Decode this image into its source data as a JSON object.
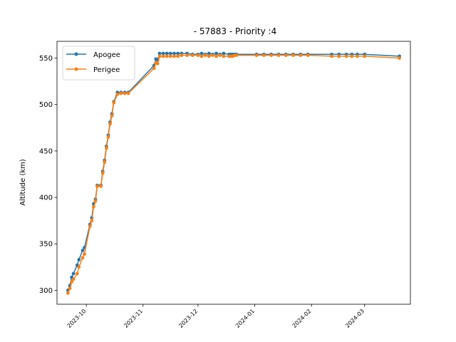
{
  "chart_data": {
    "type": "line",
    "title": " - 57883 - Priority :4",
    "xlabel": "",
    "ylabel": "Altitude (km)",
    "xlim": [
      "2023-09-15",
      "2024-03-26"
    ],
    "ylim": [
      285,
      568
    ],
    "x_ticks": [
      "2023-10",
      "2023-11",
      "2023-12",
      "2024-01",
      "2024-02",
      "2024-03"
    ],
    "y_ticks": [
      300,
      350,
      400,
      450,
      500,
      550
    ],
    "grid": false,
    "legend_position": "top-left",
    "colors": {
      "apogee": "#1f77b4",
      "perigee": "#ff7f0e"
    },
    "series": [
      {
        "name": "Apogee",
        "points": [
          [
            "2023-09-21",
            300
          ],
          [
            "2023-09-22",
            305
          ],
          [
            "2023-09-23",
            314
          ],
          [
            "2023-09-24",
            318
          ],
          [
            "2023-09-26",
            327
          ],
          [
            "2023-09-27",
            333
          ],
          [
            "2023-09-29",
            343
          ],
          [
            "2023-09-30",
            346
          ],
          [
            "2023-10-03",
            371
          ],
          [
            "2023-10-04",
            378
          ],
          [
            "2023-10-05",
            393
          ],
          [
            "2023-10-06",
            398
          ],
          [
            "2023-10-07",
            413
          ],
          [
            "2023-10-09",
            413
          ],
          [
            "2023-10-10",
            428
          ],
          [
            "2023-10-11",
            440
          ],
          [
            "2023-10-12",
            455
          ],
          [
            "2023-10-13",
            467
          ],
          [
            "2023-10-14",
            481
          ],
          [
            "2023-10-15",
            490
          ],
          [
            "2023-10-16",
            503
          ],
          [
            "2023-10-18",
            513
          ],
          [
            "2023-10-20",
            513
          ],
          [
            "2023-10-22",
            513
          ],
          [
            "2023-10-24",
            513
          ],
          [
            "2023-11-07",
            542
          ],
          [
            "2023-11-08",
            549
          ],
          [
            "2023-11-09",
            548
          ],
          [
            "2023-11-10",
            555
          ],
          [
            "2023-11-12",
            555
          ],
          [
            "2023-11-14",
            555
          ],
          [
            "2023-11-16",
            555
          ],
          [
            "2023-11-18",
            555
          ],
          [
            "2023-11-20",
            555
          ],
          [
            "2023-11-22",
            555
          ],
          [
            "2023-11-25",
            555
          ],
          [
            "2023-11-28",
            554
          ],
          [
            "2023-12-01",
            554
          ],
          [
            "2023-12-03",
            555
          ],
          [
            "2023-12-05",
            554
          ],
          [
            "2023-12-07",
            555
          ],
          [
            "2023-12-09",
            554
          ],
          [
            "2023-12-11",
            555
          ],
          [
            "2023-12-13",
            554
          ],
          [
            "2023-12-15",
            555
          ],
          [
            "2023-12-18",
            554
          ],
          [
            "2023-12-19",
            554
          ],
          [
            "2023-12-20",
            554
          ],
          [
            "2023-12-21",
            554
          ],
          [
            "2023-12-22",
            554
          ],
          [
            "2024-01-02",
            554
          ],
          [
            "2024-01-06",
            554
          ],
          [
            "2024-01-10",
            554
          ],
          [
            "2024-01-14",
            554
          ],
          [
            "2024-01-18",
            554
          ],
          [
            "2024-01-22",
            554
          ],
          [
            "2024-01-26",
            554
          ],
          [
            "2024-01-30",
            554
          ],
          [
            "2024-02-12",
            554
          ],
          [
            "2024-02-16",
            554
          ],
          [
            "2024-02-20",
            554
          ],
          [
            "2024-02-23",
            554
          ],
          [
            "2024-02-26",
            554
          ],
          [
            "2024-03-01",
            554
          ],
          [
            "2024-03-20",
            552
          ]
        ]
      },
      {
        "name": "Perigee",
        "points": [
          [
            "2023-09-21",
            297
          ],
          [
            "2023-09-22",
            302
          ],
          [
            "2023-09-23",
            309
          ],
          [
            "2023-09-24",
            312
          ],
          [
            "2023-09-26",
            318
          ],
          [
            "2023-09-27",
            325
          ],
          [
            "2023-09-29",
            335
          ],
          [
            "2023-09-30",
            339
          ],
          [
            "2023-10-03",
            369
          ],
          [
            "2023-10-04",
            375
          ],
          [
            "2023-10-05",
            390
          ],
          [
            "2023-10-06",
            396
          ],
          [
            "2023-10-07",
            412
          ],
          [
            "2023-10-09",
            412
          ],
          [
            "2023-10-10",
            426
          ],
          [
            "2023-10-11",
            438
          ],
          [
            "2023-10-12",
            453
          ],
          [
            "2023-10-13",
            465
          ],
          [
            "2023-10-14",
            479
          ],
          [
            "2023-10-15",
            488
          ],
          [
            "2023-10-16",
            502
          ],
          [
            "2023-10-18",
            511
          ],
          [
            "2023-10-20",
            512
          ],
          [
            "2023-10-22",
            512
          ],
          [
            "2023-10-24",
            512
          ],
          [
            "2023-11-07",
            539
          ],
          [
            "2023-11-08",
            545
          ],
          [
            "2023-11-09",
            544
          ],
          [
            "2023-11-10",
            552
          ],
          [
            "2023-11-12",
            552
          ],
          [
            "2023-11-14",
            552
          ],
          [
            "2023-11-16",
            552
          ],
          [
            "2023-11-18",
            552
          ],
          [
            "2023-11-20",
            552
          ],
          [
            "2023-11-22",
            553
          ],
          [
            "2023-11-25",
            553
          ],
          [
            "2023-11-28",
            553
          ],
          [
            "2023-12-01",
            553
          ],
          [
            "2023-12-03",
            552
          ],
          [
            "2023-12-05",
            553
          ],
          [
            "2023-12-07",
            552
          ],
          [
            "2023-12-09",
            553
          ],
          [
            "2023-12-11",
            552
          ],
          [
            "2023-12-13",
            553
          ],
          [
            "2023-12-15",
            552
          ],
          [
            "2023-12-18",
            552
          ],
          [
            "2023-12-19",
            552
          ],
          [
            "2023-12-20",
            552
          ],
          [
            "2023-12-21",
            553
          ],
          [
            "2023-12-22",
            553
          ],
          [
            "2024-01-02",
            553
          ],
          [
            "2024-01-06",
            553
          ],
          [
            "2024-01-10",
            553
          ],
          [
            "2024-01-14",
            553
          ],
          [
            "2024-01-18",
            553
          ],
          [
            "2024-01-22",
            553
          ],
          [
            "2024-01-26",
            553
          ],
          [
            "2024-01-30",
            553
          ],
          [
            "2024-02-12",
            552
          ],
          [
            "2024-02-16",
            552
          ],
          [
            "2024-02-20",
            552
          ],
          [
            "2024-02-23",
            552
          ],
          [
            "2024-02-26",
            552
          ],
          [
            "2024-03-01",
            552
          ],
          [
            "2024-03-20",
            550
          ]
        ]
      }
    ]
  }
}
